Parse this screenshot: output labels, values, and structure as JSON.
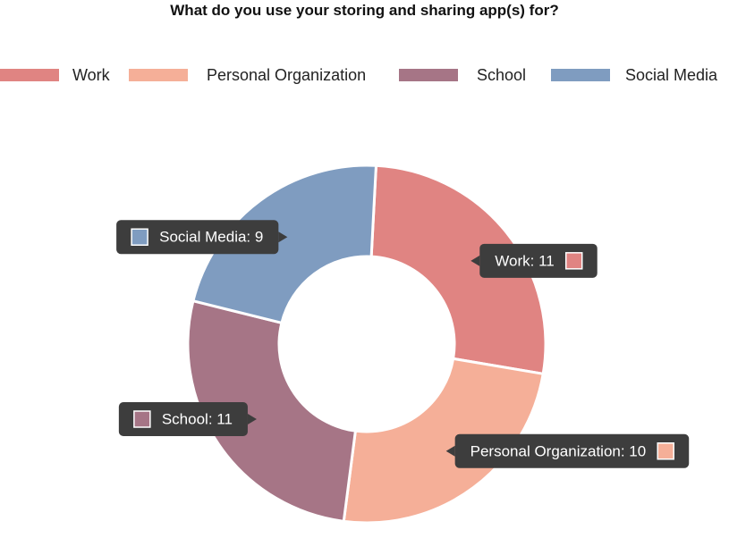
{
  "chart_data": {
    "type": "pie",
    "title": "What do you use your storing and sharing app(s) for?",
    "legend_position": "top",
    "donut": true,
    "categories": [
      "Work",
      "Personal Organization",
      "School",
      "Social Media"
    ],
    "values": [
      11,
      10,
      11,
      9
    ],
    "colors": [
      "#e08482",
      "#f5af98",
      "#a67586",
      "#7f9cc0"
    ],
    "data_labels": [
      "Work: 11",
      "Personal Organization: 10",
      "School: 11",
      "Social Media: 9"
    ]
  }
}
